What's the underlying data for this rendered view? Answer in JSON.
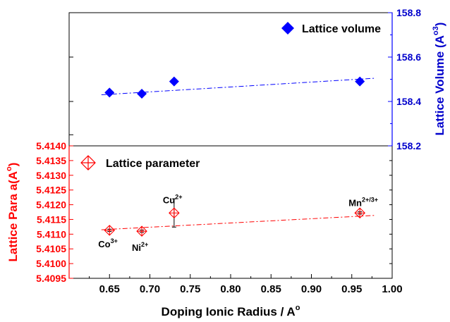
{
  "chart_data": [
    {
      "type": "scatter",
      "panel": "top",
      "ylabel": "Lattice Volume (A°3)",
      "ylabel_main": "Lattice Volume (A",
      "ylabel_unit_sup": "o",
      "ylabel_exp_sup": "3",
      "ylabel_close": ")",
      "ylim": [
        158.2,
        158.8
      ],
      "yticks": [
        "158.2",
        "158.4",
        "158.6",
        "158.8"
      ],
      "legend": {
        "label": "Lattice volume",
        "position": "top-right"
      },
      "color": "#0000ff",
      "series": [
        {
          "name": "Lattice volume",
          "x": [
            0.65,
            0.69,
            0.73,
            0.96
          ],
          "y": [
            158.44,
            158.435,
            158.49,
            158.49
          ]
        }
      ],
      "fit": {
        "x": [
          0.64,
          0.98
        ],
        "y": [
          158.43,
          158.505
        ]
      }
    },
    {
      "type": "scatter",
      "panel": "bottom",
      "xlabel": "Doping Ionic Radius / A°",
      "xlabel_main": "Doping Ionic Radius / A",
      "xlabel_sup": "o",
      "ylabel": "Lattice Para a(A°)",
      "ylabel_main": "Lattice Para a(A",
      "ylabel_sup": "o",
      "ylabel_close": ")",
      "xlim": [
        0.6,
        1.0
      ],
      "xticks": [
        "0.65",
        "0.70",
        "0.75",
        "0.80",
        "0.85",
        "0.90",
        "0.95",
        "1.00"
      ],
      "ylim": [
        5.4095,
        5.414
      ],
      "yticks": [
        "5.4095",
        "5.4100",
        "5.4105",
        "5.4110",
        "5.4115",
        "5.4120",
        "5.4125",
        "5.4130",
        "5.4135",
        "5.4140"
      ],
      "legend": {
        "label": "Lattice parameter",
        "position": "top-left"
      },
      "color": "#ff0000",
      "series": [
        {
          "name": "Lattice parameter",
          "x": [
            0.65,
            0.69,
            0.73,
            0.96
          ],
          "y": [
            5.41113,
            5.4111,
            5.41172,
            5.41172
          ],
          "yerr": [
            4e-05,
            4e-05,
            0.00048,
            4e-05
          ]
        }
      ],
      "fit": {
        "x": [
          0.64,
          0.98
        ],
        "y": [
          5.41115,
          5.41164
        ]
      },
      "annotations": [
        {
          "base": "Co",
          "sup": "3+",
          "x": 0.65,
          "y": 5.41113
        },
        {
          "base": "Ni",
          "sup": "2+",
          "x": 0.69,
          "y": 5.4111
        },
        {
          "base": "Cu",
          "sup": "2+",
          "x": 0.73,
          "y": 5.41172
        },
        {
          "base": "Mn",
          "sup": "2+/3+",
          "x": 0.96,
          "y": 5.41172
        }
      ]
    }
  ]
}
